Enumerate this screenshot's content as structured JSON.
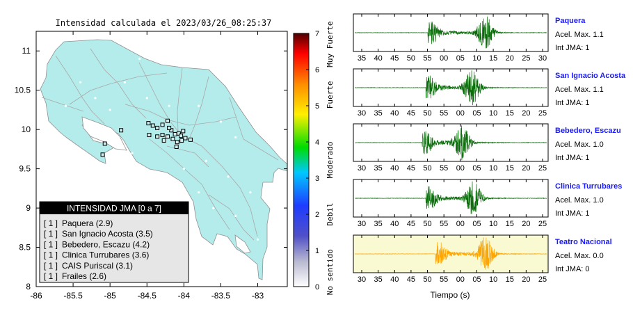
{
  "chart_data": [
    {
      "type": "map",
      "title": "Intensidad calculada el 2023/03/26_08:25:37",
      "xlim": [
        -86,
        -82.6
      ],
      "ylim": [
        8,
        11.25
      ],
      "xticks": [
        -86,
        -85.5,
        -85,
        -84.5,
        -84,
        -83.5,
        -83
      ],
      "yticks": [
        8,
        8.5,
        9,
        9.5,
        10,
        10.5,
        11
      ],
      "stations": [
        {
          "lon": -84.48,
          "lat": 10.08
        },
        {
          "lon": -84.42,
          "lat": 10.05
        },
        {
          "lon": -84.36,
          "lat": 10.02
        },
        {
          "lon": -84.29,
          "lat": 10.06
        },
        {
          "lon": -84.22,
          "lat": 10.11
        },
        {
          "lon": -84.17,
          "lat": 9.99
        },
        {
          "lon": -84.12,
          "lat": 9.94
        },
        {
          "lon": -84.07,
          "lat": 9.95
        },
        {
          "lon": -84.04,
          "lat": 9.92
        },
        {
          "lon": -83.98,
          "lat": 9.89
        },
        {
          "lon": -84.03,
          "lat": 9.86
        },
        {
          "lon": -84.09,
          "lat": 9.84
        },
        {
          "lon": -84.15,
          "lat": 9.88
        },
        {
          "lon": -84.22,
          "lat": 9.91
        },
        {
          "lon": -84.29,
          "lat": 9.93
        },
        {
          "lon": -84.36,
          "lat": 9.91
        },
        {
          "lon": -84.47,
          "lat": 9.93
        },
        {
          "lon": -84.27,
          "lat": 9.86
        },
        {
          "lon": -84.01,
          "lat": 9.98
        },
        {
          "lon": -84.1,
          "lat": 9.78
        },
        {
          "lon": -84.85,
          "lat": 9.99
        },
        {
          "lon": -85.07,
          "lat": 9.82
        },
        {
          "lon": -85.1,
          "lat": 9.68
        },
        {
          "lon": -83.91,
          "lat": 9.87
        },
        {
          "lon": -84.2,
          "lat": 10.02
        }
      ],
      "legend": {
        "title": "INTENSIDAD JMA [0 a 7]",
        "items": [
          {
            "code": "[ 1 ]",
            "label": "Paquera (2.9)"
          },
          {
            "code": "[ 1 ]",
            "label": "San Ignacio Acosta (3.5)"
          },
          {
            "code": "[ 1 ]",
            "label": "Bebedero, Escazu (4.2)"
          },
          {
            "code": "[ 1 ]",
            "label": "Clinica Turrubares (3.6)"
          },
          {
            "code": "[ 1 ]",
            "label": "CAIS Puriscal (3.1)"
          },
          {
            "code": "[ 1 ]",
            "label": "Frailes (2.6)"
          }
        ]
      },
      "colorbar": {
        "range": [
          0,
          7
        ],
        "ticks": [
          0,
          1,
          2,
          3,
          4,
          5,
          6,
          7
        ],
        "categories": [
          "No sentido",
          "Debil",
          "Moderado",
          "Fuerte",
          "Muy Fuerte"
        ],
        "colors": [
          "#ffffff",
          "#7070c8",
          "#1e3cff",
          "#00c8ff",
          "#00dc00",
          "#fff000",
          "#ff8c00",
          "#ff0000",
          "#500000"
        ]
      }
    },
    {
      "type": "waveforms",
      "xlabel": "Tiempo (s)",
      "traces": [
        {
          "station": "Paquera",
          "acel_label": "Acel. Max. 1.1",
          "int_label": "Int JMA: 1",
          "ticks": [
            "35",
            "40",
            "45",
            "50",
            "55",
            "00",
            "05",
            "10",
            "15",
            "20",
            "25",
            "30"
          ],
          "color": "#0a6e0a",
          "onset": 0.38,
          "peak": 0.68,
          "amp": 1.0
        },
        {
          "station": "San Ignacio Acosta",
          "acel_label": "Acel. Max. 1.1",
          "int_label": "Int JMA: 1",
          "ticks": [
            "30",
            "35",
            "40",
            "45",
            "50",
            "55",
            "00",
            "05",
            "10",
            "15",
            "20",
            "25"
          ],
          "color": "#0a6e0a",
          "onset": 0.37,
          "peak": 0.61,
          "amp": 1.0
        },
        {
          "station": "Bebedero, Escazu",
          "acel_label": "Acel. Max. 1.0",
          "int_label": "Int JMA: 1",
          "ticks": [
            "30",
            "35",
            "40",
            "45",
            "50",
            "55",
            "00",
            "05",
            "10",
            "15",
            "20",
            "25"
          ],
          "color": "#0a6e0a",
          "onset": 0.35,
          "peak": 0.56,
          "amp": 1.0
        },
        {
          "station": "Clinica Turrubares",
          "acel_label": "Acel. Max. 1.0",
          "int_label": "Int JMA: 1",
          "ticks": [
            "30",
            "35",
            "40",
            "45",
            "50",
            "55",
            "00",
            "05",
            "10",
            "15",
            "20",
            "25"
          ],
          "color": "#0a6e0a",
          "onset": 0.37,
          "peak": 0.62,
          "amp": 1.0
        },
        {
          "station": "Teatro Nacional",
          "acel_label": "Acel. Max. 0.0",
          "int_label": "Int JMA: 0",
          "ticks": [
            "30",
            "35",
            "40",
            "45",
            "50",
            "55",
            "00",
            "05",
            "10",
            "15",
            "20",
            "25"
          ],
          "color": "#ffa500",
          "onset": 0.42,
          "peak": 0.68,
          "amp": 1.0
        }
      ]
    }
  ]
}
